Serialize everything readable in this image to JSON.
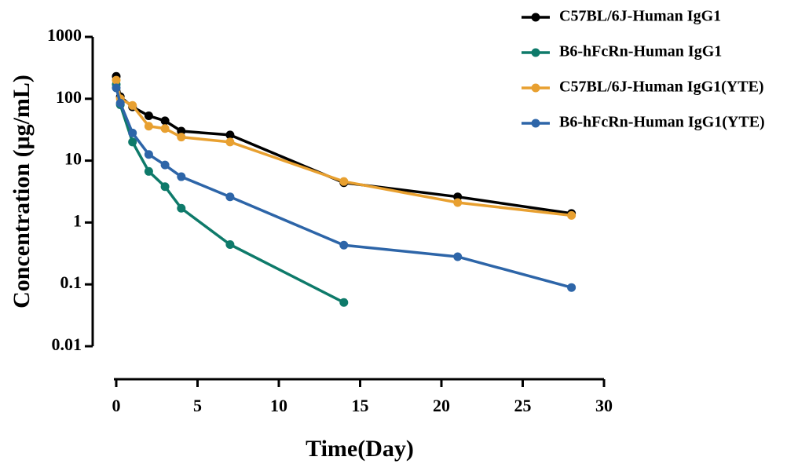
{
  "chart_data": {
    "type": "line",
    "x_label": "Time(Day)",
    "y_label": "Concentration (μg/mL)",
    "x": [
      0,
      0.25,
      1,
      2,
      3,
      4,
      7,
      14,
      21,
      28
    ],
    "series": [
      {
        "name": "C57BL/6J-Human IgG1",
        "color": "#000000",
        "values": [
          230,
          108,
          74,
          53,
          44,
          30,
          26,
          4.4,
          2.6,
          1.4
        ]
      },
      {
        "name": "B6-hFcRn-Human IgG1",
        "color": "#0e7a6a",
        "values": [
          170,
          80,
          20,
          6.7,
          3.8,
          1.7,
          0.44,
          0.051,
          null,
          null
        ]
      },
      {
        "name": "C57BL/6J-Human IgG1(YTE)",
        "color": "#e8a030",
        "values": [
          200,
          100,
          78,
          36,
          33,
          24,
          20,
          4.6,
          2.1,
          1.3
        ]
      },
      {
        "name": "B6-hFcRn-Human IgG1(YTE)",
        "color": "#2d65a8",
        "values": [
          150,
          85,
          28,
          12.6,
          8.5,
          5.5,
          2.6,
          0.43,
          0.28,
          0.089
        ]
      }
    ],
    "xlim": [
      0,
      30
    ],
    "xticks": [
      0,
      5,
      10,
      15,
      20,
      25,
      30
    ],
    "ylim": [
      0.01,
      1000
    ],
    "yticks": [
      1000,
      100,
      10,
      1,
      0.1,
      0.01
    ],
    "log_y": true,
    "grid": false,
    "legend": "top-right"
  }
}
